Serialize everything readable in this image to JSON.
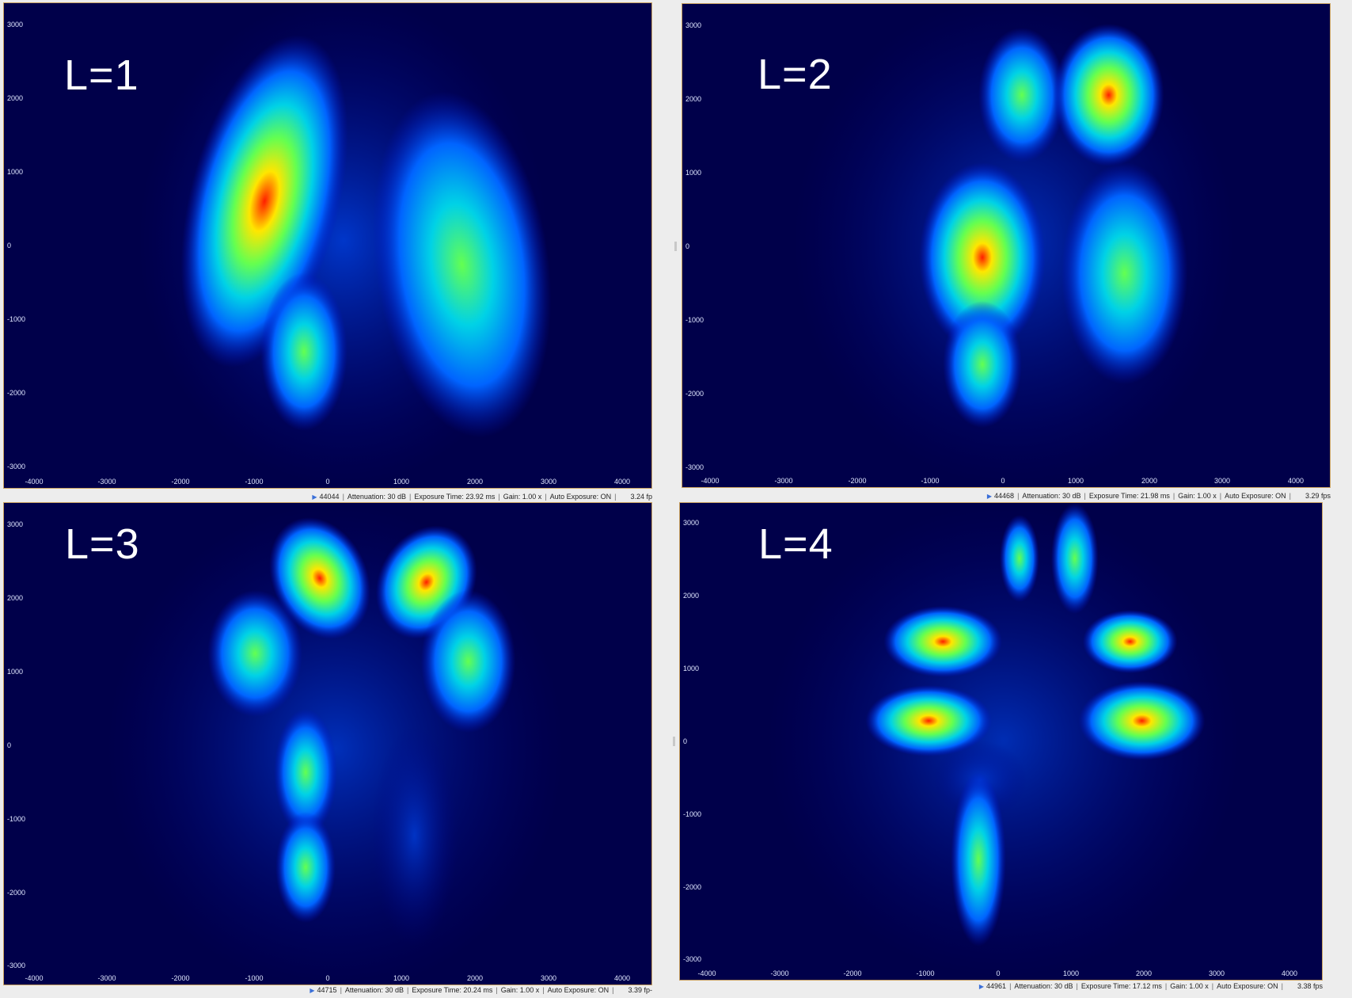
{
  "panels": [
    {
      "label": "L=1",
      "frame": "44044",
      "attenuation": "Attenuation: 30 dB",
      "exposure": "Exposure Time: 23.92 ms",
      "gain": "Gain: 1.00 x",
      "auto_exposure": "Auto Exposure: ON",
      "fps": "3.24 fp"
    },
    {
      "label": "L=2",
      "frame": "44468",
      "attenuation": "Attenuation: 30 dB",
      "exposure": "Exposure Time: 21.98 ms",
      "gain": "Gain: 1.00 x",
      "auto_exposure": "Auto Exposure: ON",
      "fps": "3.29 fps"
    },
    {
      "label": "L=3",
      "frame": "44715",
      "attenuation": "Attenuation: 30 dB",
      "exposure": "Exposure Time: 20.24 ms",
      "gain": "Gain: 1.00 x",
      "auto_exposure": "Auto Exposure: ON",
      "fps": "3.39 fp-"
    },
    {
      "label": "L=4",
      "frame": "44961",
      "attenuation": "Attenuation: 30 dB",
      "exposure": "Exposure Time: 17.12 ms",
      "gain": "Gain: 1.00 x",
      "auto_exposure": "Auto Exposure: ON",
      "fps": "3.38 fps"
    }
  ],
  "axes": {
    "y_ticks": [
      "3000",
      "2000",
      "1000",
      "0",
      "-1000",
      "-2000",
      "-3000"
    ],
    "x_ticks": [
      "-4000",
      "-3000",
      "-2000",
      "-1000",
      "0",
      "1000",
      "2000",
      "3000",
      "4000"
    ]
  },
  "colormap": [
    "#00004a",
    "#0010c8",
    "#0064ff",
    "#00d2e6",
    "#64ff50",
    "#ffe600",
    "#ff1e00"
  ]
}
